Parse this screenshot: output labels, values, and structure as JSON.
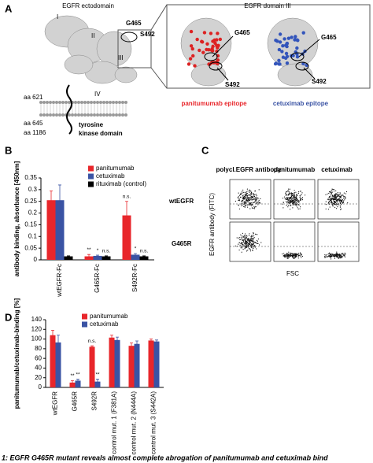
{
  "panel_a": {
    "label": "A",
    "ectodomain_title": "EGFR ectodomain",
    "domain3_title": "EGFR domain III",
    "domains": [
      "I",
      "II",
      "III",
      "IV"
    ],
    "residues": [
      "G465",
      "S492"
    ],
    "positions": [
      "aa 621",
      "aa 645",
      "aa 1186"
    ],
    "kinase": [
      "tyrosine",
      "kinase domain"
    ],
    "epitopes": [
      "panitumumab epitope",
      "cetuximab epitope"
    ]
  },
  "panel_c": {
    "label": "C",
    "columns": [
      "polycl.EGFR antibody",
      "panitumumab",
      "cetuximab"
    ],
    "rows": [
      "wtEGFR",
      "G465R"
    ],
    "y_label": "EGFR antibody (FITC)",
    "x_label": "FSC"
  },
  "chart_data": [
    {
      "type": "bar",
      "label": "B",
      "y_label": "antibody binding, absorbance [450nm]",
      "categories": [
        "wtEGFR-Fc",
        "G465R-Fc",
        "S492R-Fc"
      ],
      "series": [
        {
          "name": "panitumumab",
          "color": "#e8262b",
          "values": [
            0.255,
            0.015,
            0.19
          ],
          "errors": [
            0.04,
            0.008,
            0.06
          ],
          "annotations": [
            null,
            "**",
            "n.s."
          ]
        },
        {
          "name": "cetuximab",
          "color": "#3a53a4",
          "values": [
            0.255,
            0.017,
            0.022
          ],
          "errors": [
            0.065,
            0.003,
            0.005
          ],
          "annotations": [
            null,
            "*",
            "*"
          ]
        },
        {
          "name": "rituximab (control)",
          "color": "#000000",
          "values": [
            0.015,
            0.015,
            0.015
          ],
          "errors": [
            0.002,
            0.002,
            0.002
          ],
          "annotations": [
            null,
            "n.s.",
            "n.s."
          ]
        }
      ],
      "ylim": [
        0,
        0.35
      ],
      "yticks": [
        0,
        0.05,
        0.1,
        0.15,
        0.2,
        0.25,
        0.3,
        0.35
      ]
    },
    {
      "type": "bar",
      "label": "D",
      "y_label": "panitumumab/cetuximab-binding [%]",
      "categories": [
        "wtEGFR",
        "G465R",
        "S492R",
        "control mut. 1 (F381A)",
        "control mut. 2 (N444A)",
        "control mut. 3 (S442A)"
      ],
      "series": [
        {
          "name": "panitumumab",
          "color": "#e8262b",
          "values": [
            108,
            10,
            84,
            103,
            86,
            97
          ],
          "errors": [
            10,
            4,
            2,
            5,
            6,
            3
          ],
          "annotations": [
            null,
            "**",
            "n.s.",
            null,
            null,
            null
          ]
        },
        {
          "name": "cetuximab",
          "color": "#3a53a4",
          "values": [
            93,
            14,
            12,
            98,
            90,
            95
          ],
          "errors": [
            15,
            3,
            5,
            6,
            6,
            3
          ],
          "annotations": [
            null,
            "**",
            "**",
            null,
            null,
            null
          ]
        }
      ],
      "ylim": [
        0,
        140
      ],
      "yticks": [
        0,
        20,
        40,
        60,
        80,
        100,
        120,
        140
      ]
    }
  ],
  "caption": "1: EGFR G465R mutant reveals almost complete abrogation of panitumumab and cetuximab bind"
}
